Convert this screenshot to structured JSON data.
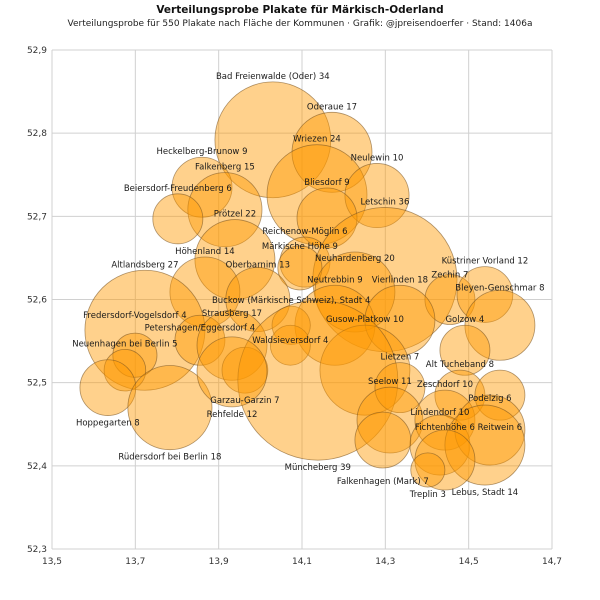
{
  "chart_data": {
    "type": "bubble",
    "title": "Verteilungsprobe Plakate für Märkisch-Oderland",
    "subtitle": "Verteilungsprobe für 550 Plakate nach Fläche der Kommunen · Grafik: @jpreisendoerfer · Stand: 1406a",
    "xlim": [
      13.5,
      14.7
    ],
    "ylim": [
      52.3,
      52.9
    ],
    "x_ticks": [
      "13,5",
      "13,7",
      "13,9",
      "14,1",
      "14,3",
      "14,5",
      "14,7"
    ],
    "y_ticks": [
      "52,3",
      "52,4",
      "52,5",
      "52,6",
      "52,7",
      "52,8",
      "52,9"
    ],
    "grid": true,
    "colors": {
      "fill": "#ff9900",
      "stroke": "#7a5320",
      "grid": "#d0d0d0"
    },
    "points": [
      {
        "label": "Bad Freienwalde (Oder) 34",
        "x": 14.03,
        "y": 52.792,
        "size": 0.139
      },
      {
        "label": "Oderaue 17",
        "x": 14.172,
        "y": 52.777,
        "size": 0.096
      },
      {
        "label": "Heckelberg-Brunow 9",
        "x": 13.86,
        "y": 52.735,
        "size": 0.072
      },
      {
        "label": "Wriezen 24",
        "x": 14.136,
        "y": 52.726,
        "size": 0.12
      },
      {
        "label": "Neulewin 10",
        "x": 14.28,
        "y": 52.725,
        "size": 0.077
      },
      {
        "label": "Falkenberg 15",
        "x": 13.915,
        "y": 52.708,
        "size": 0.089
      },
      {
        "label": "Beiersdorf-Freudenberg 6",
        "x": 13.802,
        "y": 52.697,
        "size": 0.06
      },
      {
        "label": "Bliesdorf 9",
        "x": 14.16,
        "y": 52.698,
        "size": 0.072
      },
      {
        "label": "Prötzel 22",
        "x": 13.939,
        "y": 52.648,
        "size": 0.096
      },
      {
        "label": "Reichenow-Möglin 6",
        "x": 14.107,
        "y": 52.645,
        "size": 0.06
      },
      {
        "label": "Letschin 36",
        "x": 14.299,
        "y": 52.624,
        "size": 0.173
      },
      {
        "label": "Märkische Höhe 9",
        "x": 14.095,
        "y": 52.638,
        "size": 0.053
      },
      {
        "label": "Höhenland 14",
        "x": 13.867,
        "y": 52.609,
        "size": 0.084
      },
      {
        "label": "Neuhardenberg 20",
        "x": 14.227,
        "y": 52.609,
        "size": 0.096
      },
      {
        "label": "Oberbarnim 13",
        "x": 13.994,
        "y": 52.6,
        "size": 0.077
      },
      {
        "label": "Zechin 7",
        "x": 14.455,
        "y": 52.6,
        "size": 0.06
      },
      {
        "label": "Küstriner Vorland 12",
        "x": 14.539,
        "y": 52.606,
        "size": 0.067
      },
      {
        "label": "Neutrebbin 9",
        "x": 14.179,
        "y": 52.569,
        "size": 0.096
      },
      {
        "label": "Buckow (Märkische Schweiz), Stadt 4",
        "x": 14.074,
        "y": 52.569,
        "size": 0.046
      },
      {
        "label": "Altlandsberg 27",
        "x": 13.723,
        "y": 52.563,
        "size": 0.144
      },
      {
        "label": "Vierlinden 18",
        "x": 14.335,
        "y": 52.575,
        "size": 0.084
      },
      {
        "label": "Bleyen-Genschmar 8",
        "x": 14.575,
        "y": 52.569,
        "size": 0.084
      },
      {
        "label": "Petershagen/Eggersdorf 4",
        "x": 13.855,
        "y": 52.551,
        "size": 0.06
      },
      {
        "label": "Fredersdorf-Vogelsdorf 4",
        "x": 13.699,
        "y": 52.533,
        "size": 0.053
      },
      {
        "label": "Golzow 4",
        "x": 14.491,
        "y": 52.539,
        "size": 0.06
      },
      {
        "label": "Gusow-Platkow 10",
        "x": 14.251,
        "y": 52.515,
        "size": 0.108
      },
      {
        "label": "Strausberg 17",
        "x": 13.932,
        "y": 52.545,
        "size": 0.084
      },
      {
        "label": "Garzau-Garzin 7",
        "x": 13.963,
        "y": 52.515,
        "size": 0.055,
        "label_pos": "below"
      },
      {
        "label": "Waldsieversdorf 4",
        "x": 14.072,
        "y": 52.545,
        "size": 0.048
      },
      {
        "label": "Müncheberg 39",
        "x": 14.138,
        "y": 52.503,
        "size": 0.192,
        "label_pos": "below"
      },
      {
        "label": "Neuenhagen bei Berlin 5",
        "x": 13.675,
        "y": 52.515,
        "size": 0.05
      },
      {
        "label": "Hoppegarten 8",
        "x": 13.634,
        "y": 52.494,
        "size": 0.067,
        "label_pos": "below"
      },
      {
        "label": "Rüdersdorf bei Berlin 18",
        "x": 13.783,
        "y": 52.47,
        "size": 0.101,
        "label_pos": "below"
      },
      {
        "label": "Rehfelde 12",
        "x": 13.932,
        "y": 52.513,
        "size": 0.084,
        "label_pos": "below"
      },
      {
        "label": "Alt Tucheband 8",
        "x": 14.479,
        "y": 52.485,
        "size": 0.06
      },
      {
        "label": "Lietzen 7",
        "x": 14.335,
        "y": 52.494,
        "size": 0.06
      },
      {
        "label": "Seelow 11",
        "x": 14.311,
        "y": 52.455,
        "size": 0.079
      },
      {
        "label": "Zeschdorf 10",
        "x": 14.443,
        "y": 52.455,
        "size": 0.072
      },
      {
        "label": "Reitwein 6",
        "x": 14.575,
        "y": 52.485,
        "size": 0.06,
        "label_pos": "below"
      },
      {
        "label": "Lindendorf 10",
        "x": 14.431,
        "y": 52.425,
        "size": 0.072
      },
      {
        "label": "Podelzig 6",
        "x": 14.551,
        "y": 52.443,
        "size": 0.084
      },
      {
        "label": "Lebus, Stadt 14",
        "x": 14.539,
        "y": 52.425,
        "size": 0.096,
        "label_pos": "below"
      },
      {
        "label": "Fichtenhöhe 6",
        "x": 14.443,
        "y": 52.407,
        "size": 0.072
      },
      {
        "label": "Falkenhagen (Mark) 7",
        "x": 14.294,
        "y": 52.431,
        "size": 0.067,
        "label_pos": "below"
      },
      {
        "label": "Treplin 3",
        "x": 14.402,
        "y": 52.395,
        "size": 0.041,
        "label_pos": "below"
      }
    ]
  }
}
